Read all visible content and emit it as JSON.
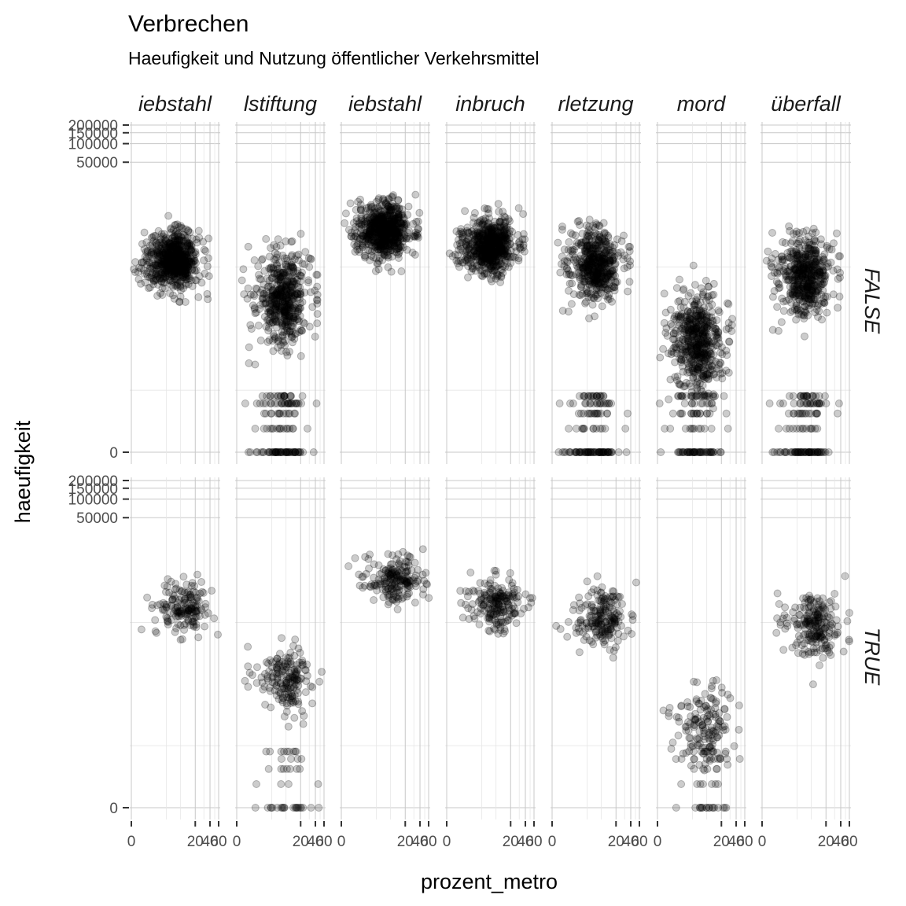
{
  "title": "Verbrechen",
  "subtitle": "Haeufigkeit und Nutzung öffentlicher Verkehrsmittel",
  "chart_data": {
    "type": "scatter",
    "title": "Verbrechen",
    "subtitle": "Haeufigkeit und Nutzung öffentlicher Verkehrsmittel",
    "xlabel": "prozent_metro",
    "ylabel": "haeufigkeit",
    "grid": true,
    "point_color": "#000000",
    "point_alpha": 0.2,
    "y_scale": "pseudo-log",
    "x_scale": "pseudo-log",
    "y_ticks": [
      0,
      50000,
      100000,
      150000,
      200000
    ],
    "y_tick_labels": [
      "0",
      "50000",
      "100000",
      "150000",
      "200000"
    ],
    "x_ticks": [
      0,
      20,
      40,
      60
    ],
    "x_tick_labels": [
      "0",
      "20",
      "40",
      "60"
    ],
    "facet_cols": [
      {
        "label": "iebstahl"
      },
      {
        "label": "lstiftung"
      },
      {
        "label": "iebstahl"
      },
      {
        "label": "inbruch"
      },
      {
        "label": "rletzung"
      },
      {
        "label": "mord"
      },
      {
        "label": "überfall"
      }
    ],
    "facet_rows": [
      {
        "label": "FALSE"
      },
      {
        "label": "TRUE"
      }
    ],
    "panels": [
      {
        "col": 0,
        "row": "FALSE",
        "n": 700,
        "y_center": 1300,
        "y_spread": 0.55,
        "x_max": 14,
        "zeros": false
      },
      {
        "col": 1,
        "row": "FALSE",
        "n": 650,
        "y_center": 300,
        "y_spread": 0.9,
        "x_max": 16,
        "zeros": true
      },
      {
        "col": 2,
        "row": "FALSE",
        "n": 700,
        "y_center": 4000,
        "y_spread": 0.5,
        "x_max": 14,
        "zeros": false
      },
      {
        "col": 3,
        "row": "FALSE",
        "n": 650,
        "y_center": 2200,
        "y_spread": 0.5,
        "x_max": 14,
        "zeros": false
      },
      {
        "col": 4,
        "row": "FALSE",
        "n": 650,
        "y_center": 1100,
        "y_spread": 0.65,
        "x_max": 14,
        "zeros": true
      },
      {
        "col": 5,
        "row": "FALSE",
        "n": 650,
        "y_center": 60,
        "y_spread": 0.9,
        "x_max": 12,
        "zeros": true
      },
      {
        "col": 6,
        "row": "FALSE",
        "n": 650,
        "y_center": 700,
        "y_spread": 0.75,
        "x_max": 14,
        "zeros": true
      },
      {
        "col": 0,
        "row": "TRUE",
        "n": 170,
        "y_center": 1800,
        "y_spread": 0.5,
        "x_max": 22,
        "zeros": false
      },
      {
        "col": 1,
        "row": "TRUE",
        "n": 230,
        "y_center": 120,
        "y_spread": 0.6,
        "x_max": 20,
        "zeros": true
      },
      {
        "col": 2,
        "row": "TRUE",
        "n": 200,
        "y_center": 5000,
        "y_spread": 0.4,
        "x_max": 22,
        "zeros": false
      },
      {
        "col": 3,
        "row": "TRUE",
        "n": 200,
        "y_center": 2000,
        "y_spread": 0.45,
        "x_max": 20,
        "zeros": false
      },
      {
        "col": 4,
        "row": "TRUE",
        "n": 200,
        "y_center": 1200,
        "y_spread": 0.55,
        "x_max": 20,
        "zeros": false
      },
      {
        "col": 5,
        "row": "TRUE",
        "n": 200,
        "y_center": 20,
        "y_spread": 0.8,
        "x_max": 18,
        "zeros": true
      },
      {
        "col": 6,
        "row": "TRUE",
        "n": 220,
        "y_center": 900,
        "y_spread": 0.65,
        "x_max": 22,
        "zeros": false
      }
    ]
  }
}
